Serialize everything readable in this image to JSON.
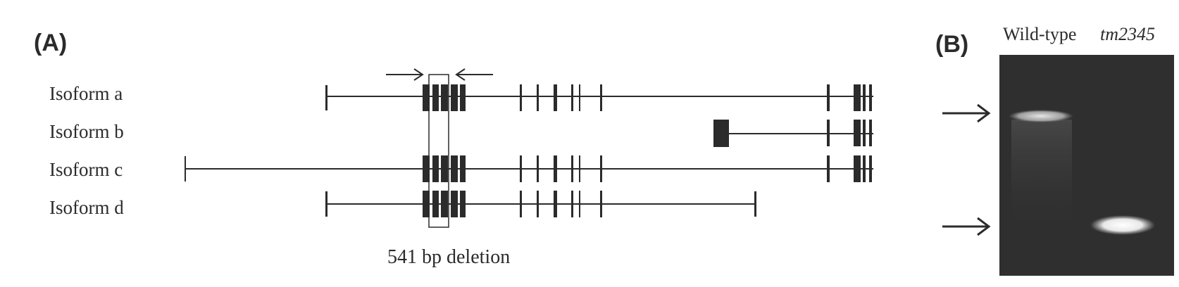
{
  "panel_a": {
    "label": "(A)",
    "isoforms": [
      {
        "name": "Isoform a"
      },
      {
        "name": "Isoform b"
      },
      {
        "name": "Isoform c"
      },
      {
        "name": "Isoform d"
      }
    ],
    "deletion_label": "541 bp deletion"
  },
  "panel_b": {
    "label": "(B)",
    "lanes": [
      "Wild-type",
      "tm2345"
    ]
  },
  "colors": {
    "ink": "#2b2b2b",
    "gel_background": "#2f2f2f",
    "band": "#f2f2f2"
  }
}
